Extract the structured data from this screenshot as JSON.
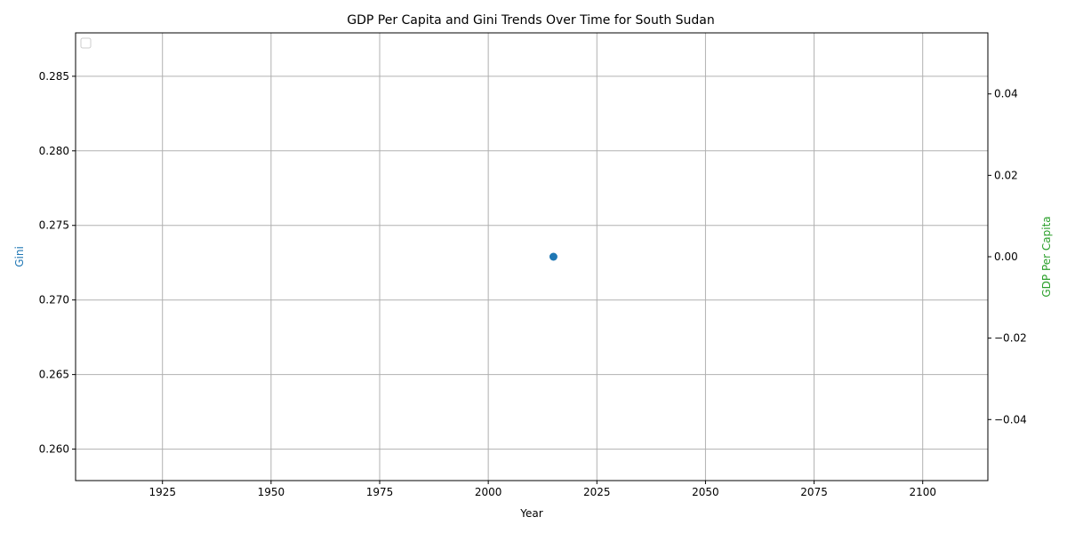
{
  "chart_data": {
    "type": "scatter",
    "title": "GDP Per Capita and Gini Trends Over Time for South Sudan",
    "xlabel": "Year",
    "ylabel": "Gini",
    "y2label": "GDP Per Capita",
    "xlim": [
      1905,
      2115
    ],
    "ylim": [
      0.25789,
      0.28791
    ],
    "y2lim": [
      -0.055,
      0.055
    ],
    "x_ticks": [
      1925,
      1950,
      1975,
      2000,
      2025,
      2050,
      2075,
      2100,
      2125
    ],
    "y_ticks": [
      0.26,
      0.265,
      0.27,
      0.275,
      0.28,
      0.285
    ],
    "y2_ticks": [
      -0.04,
      -0.02,
      0.0,
      0.02,
      0.04
    ],
    "grid": true,
    "legend": "top-left",
    "colors": {
      "gini": "#1f77b4",
      "gdp": "#2ca02c"
    },
    "series": [
      {
        "axis": "left",
        "x": [
          2015
        ],
        "y": [
          0.2729
        ]
      },
      {
        "axis": "right",
        "x": [],
        "y": []
      }
    ]
  }
}
